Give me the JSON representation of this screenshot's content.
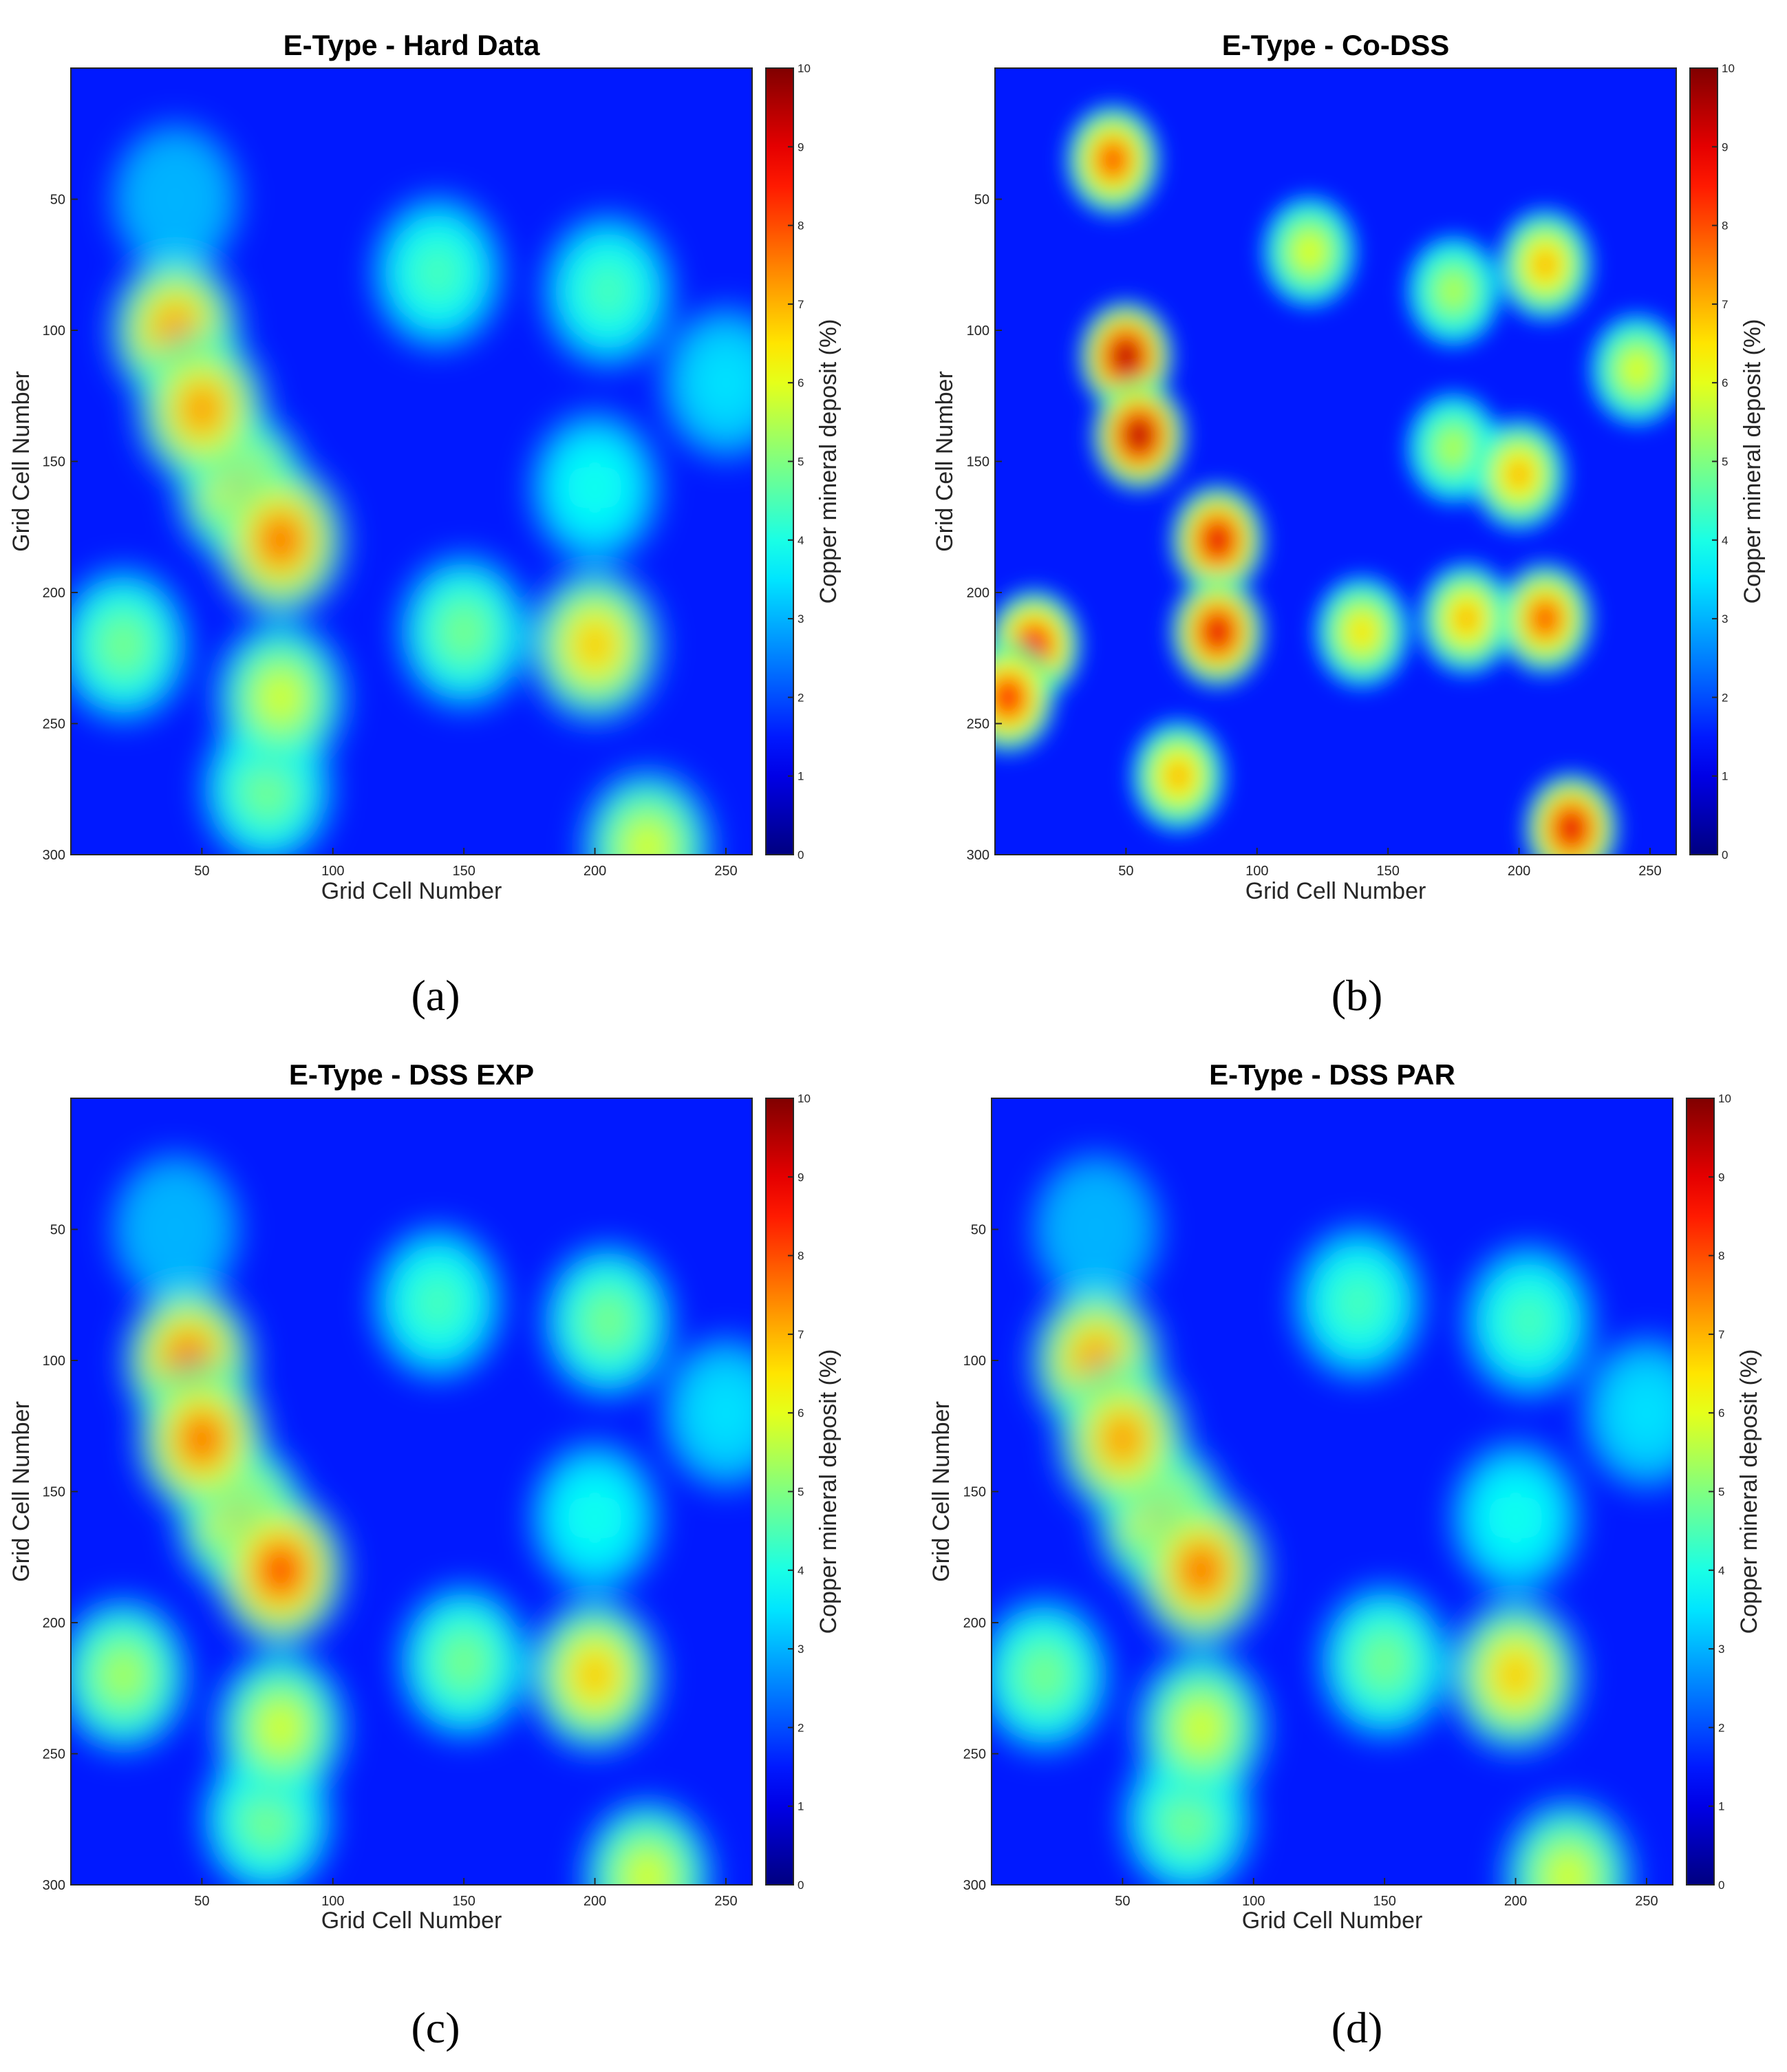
{
  "figure": {
    "captions": [
      "(a)",
      "(b)",
      "(c)",
      "(d)"
    ]
  },
  "chart_data": [
    {
      "type": "heatmap",
      "panel": "a",
      "title": "E-Type - Hard Data",
      "xlabel": "Grid Cell Number",
      "ylabel": "Grid Cell Number",
      "colorbar_label": "Copper mineral deposit (%)",
      "colormap": "jet",
      "xlim": [
        0,
        260
      ],
      "ylim": [
        300,
        0
      ],
      "xticks": [
        50,
        100,
        150,
        200,
        250
      ],
      "yticks": [
        50,
        100,
        150,
        200,
        250,
        300
      ],
      "clim": [
        0,
        10
      ],
      "colorbar_ticks": [
        0,
        1,
        2,
        3,
        4,
        5,
        6,
        7,
        8,
        9,
        10
      ],
      "hotspots": [
        {
          "x": 40,
          "y": 100,
          "value": 7.5
        },
        {
          "x": 50,
          "y": 130,
          "value": 7.5
        },
        {
          "x": 65,
          "y": 160,
          "value": 7
        },
        {
          "x": 80,
          "y": 180,
          "value": 8
        },
        {
          "x": 20,
          "y": 220,
          "value": 5
        },
        {
          "x": 80,
          "y": 240,
          "value": 6
        },
        {
          "x": 75,
          "y": 275,
          "value": 5
        },
        {
          "x": 140,
          "y": 78,
          "value": 4.5
        },
        {
          "x": 205,
          "y": 85,
          "value": 4.5
        },
        {
          "x": 150,
          "y": 215,
          "value": 5
        },
        {
          "x": 200,
          "y": 220,
          "value": 7
        },
        {
          "x": 200,
          "y": 160,
          "value": 4
        },
        {
          "x": 220,
          "y": 297,
          "value": 6
        },
        {
          "x": 40,
          "y": 50,
          "value": 3
        },
        {
          "x": 250,
          "y": 120,
          "value": 3.5
        }
      ]
    },
    {
      "type": "heatmap",
      "panel": "b",
      "title": "E-Type - Co-DSS",
      "xlabel": "Grid Cell Number",
      "ylabel": "Grid Cell Number",
      "colorbar_label": "Copper mineral deposit (%)",
      "colormap": "jet",
      "xlim": [
        0,
        260
      ],
      "ylim": [
        300,
        0
      ],
      "xticks": [
        50,
        100,
        150,
        200,
        250
      ],
      "yticks": [
        50,
        100,
        150,
        200,
        250,
        300
      ],
      "clim": [
        0,
        10
      ],
      "colorbar_ticks": [
        0,
        1,
        2,
        3,
        4,
        5,
        6,
        7,
        8,
        9,
        10
      ],
      "hotspots": [
        {
          "x": 45,
          "y": 35,
          "value": 8
        },
        {
          "x": 50,
          "y": 110,
          "value": 9.5
        },
        {
          "x": 55,
          "y": 140,
          "value": 9.5
        },
        {
          "x": 85,
          "y": 180,
          "value": 9
        },
        {
          "x": 85,
          "y": 215,
          "value": 9
        },
        {
          "x": 15,
          "y": 220,
          "value": 8.5
        },
        {
          "x": 5,
          "y": 240,
          "value": 8.5
        },
        {
          "x": 210,
          "y": 210,
          "value": 8
        },
        {
          "x": 180,
          "y": 210,
          "value": 7
        },
        {
          "x": 140,
          "y": 215,
          "value": 6.5
        },
        {
          "x": 220,
          "y": 290,
          "value": 9
        },
        {
          "x": 70,
          "y": 270,
          "value": 7
        },
        {
          "x": 210,
          "y": 75,
          "value": 7
        },
        {
          "x": 175,
          "y": 85,
          "value": 5.5
        },
        {
          "x": 120,
          "y": 70,
          "value": 6
        },
        {
          "x": 200,
          "y": 155,
          "value": 7
        },
        {
          "x": 175,
          "y": 145,
          "value": 5.5
        },
        {
          "x": 245,
          "y": 115,
          "value": 6
        }
      ]
    },
    {
      "type": "heatmap",
      "panel": "c",
      "title": "E-Type - DSS EXP",
      "xlabel": "Grid Cell Number",
      "ylabel": "Grid Cell Number",
      "colorbar_label": "Copper mineral deposit (%)",
      "colormap": "jet",
      "xlim": [
        0,
        260
      ],
      "ylim": [
        300,
        0
      ],
      "xticks": [
        50,
        100,
        150,
        200,
        250
      ],
      "yticks": [
        50,
        100,
        150,
        200,
        250,
        300
      ],
      "clim": [
        0,
        10
      ],
      "colorbar_ticks": [
        0,
        1,
        2,
        3,
        4,
        5,
        6,
        7,
        8,
        9,
        10
      ],
      "hotspots": [
        {
          "x": 45,
          "y": 100,
          "value": 8
        },
        {
          "x": 50,
          "y": 130,
          "value": 8
        },
        {
          "x": 65,
          "y": 160,
          "value": 7
        },
        {
          "x": 80,
          "y": 180,
          "value": 8.5
        },
        {
          "x": 20,
          "y": 220,
          "value": 5.5
        },
        {
          "x": 80,
          "y": 240,
          "value": 6
        },
        {
          "x": 75,
          "y": 275,
          "value": 5
        },
        {
          "x": 140,
          "y": 78,
          "value": 4.5
        },
        {
          "x": 205,
          "y": 85,
          "value": 5
        },
        {
          "x": 150,
          "y": 215,
          "value": 5
        },
        {
          "x": 200,
          "y": 220,
          "value": 7
        },
        {
          "x": 200,
          "y": 160,
          "value": 4
        },
        {
          "x": 220,
          "y": 297,
          "value": 6
        },
        {
          "x": 40,
          "y": 50,
          "value": 3
        },
        {
          "x": 250,
          "y": 120,
          "value": 3.5
        }
      ]
    },
    {
      "type": "heatmap",
      "panel": "d",
      "title": "E-Type - DSS PAR",
      "xlabel": "Grid Cell Number",
      "ylabel": "Grid Cell Number",
      "colorbar_label": "Copper mineral deposit (%)",
      "colormap": "jet",
      "xlim": [
        0,
        260
      ],
      "ylim": [
        300,
        0
      ],
      "xticks": [
        50,
        100,
        150,
        200,
        250
      ],
      "yticks": [
        50,
        100,
        150,
        200,
        250,
        300
      ],
      "clim": [
        0,
        10
      ],
      "colorbar_ticks": [
        0,
        1,
        2,
        3,
        4,
        5,
        6,
        7,
        8,
        9,
        10
      ],
      "hotspots": [
        {
          "x": 40,
          "y": 100,
          "value": 7.5
        },
        {
          "x": 50,
          "y": 130,
          "value": 7.5
        },
        {
          "x": 65,
          "y": 160,
          "value": 7
        },
        {
          "x": 80,
          "y": 180,
          "value": 8
        },
        {
          "x": 20,
          "y": 220,
          "value": 5
        },
        {
          "x": 80,
          "y": 240,
          "value": 6
        },
        {
          "x": 75,
          "y": 275,
          "value": 5
        },
        {
          "x": 140,
          "y": 78,
          "value": 4.5
        },
        {
          "x": 205,
          "y": 85,
          "value": 4.5
        },
        {
          "x": 150,
          "y": 215,
          "value": 5
        },
        {
          "x": 200,
          "y": 220,
          "value": 7
        },
        {
          "x": 200,
          "y": 160,
          "value": 4
        },
        {
          "x": 220,
          "y": 297,
          "value": 6
        },
        {
          "x": 40,
          "y": 50,
          "value": 3
        },
        {
          "x": 250,
          "y": 120,
          "value": 3.5
        }
      ]
    }
  ]
}
